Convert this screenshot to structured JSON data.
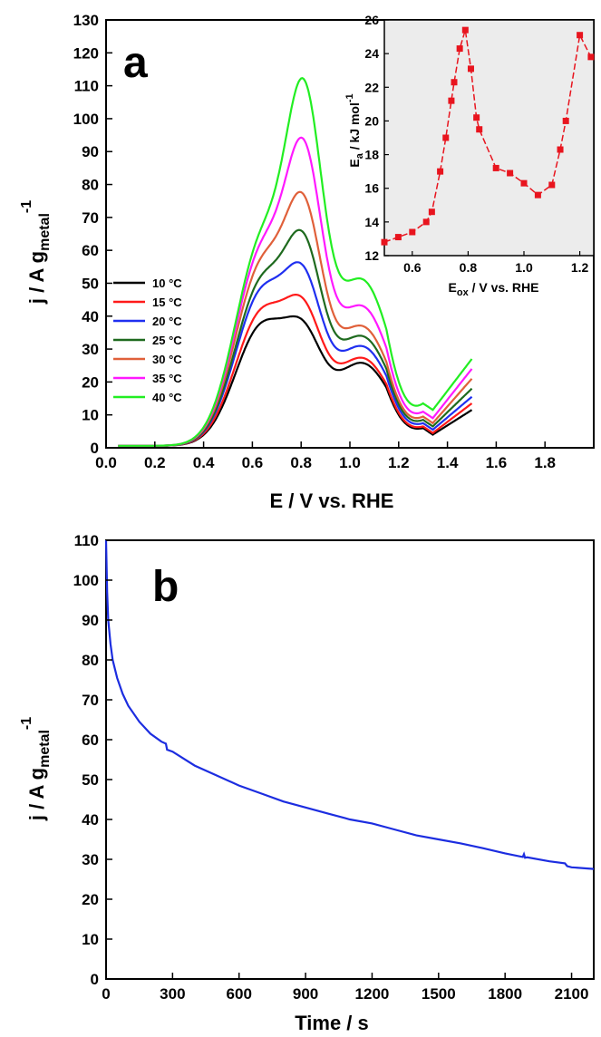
{
  "chart_data": [
    {
      "panel": "a",
      "type": "line",
      "xlabel": {
        "main": "E / V vs. RHE"
      },
      "ylabel": {
        "main": "j / A g",
        "sub": "metal",
        "sup": "-1"
      },
      "xlim": [
        0.0,
        2.0
      ],
      "ylim": [
        0,
        130
      ],
      "xticks": [
        0.0,
        0.2,
        0.4,
        0.6,
        0.8,
        1.0,
        1.2,
        1.4,
        1.6,
        1.8
      ],
      "xticklabels": [
        "0.0",
        "0.2",
        "0.4",
        "0.6",
        "0.8",
        "1.0",
        "1.2",
        "1.4",
        "1.6",
        "1.8"
      ],
      "yticks": [
        0,
        10,
        20,
        30,
        40,
        50,
        60,
        70,
        80,
        90,
        100,
        110,
        120,
        130
      ],
      "legend_position": "left",
      "series": [
        {
          "name": "10 °C",
          "color": "#000000",
          "peak1": 36,
          "peak2": 43.5,
          "valley": 4.0,
          "end": 11.5,
          "shoulder": 25
        },
        {
          "name": "15 °C",
          "color": "#ff1a1a",
          "peak1": 40,
          "peak2": 51,
          "valley": 4.5,
          "end": 13.5,
          "shoulder": 26.5
        },
        {
          "name": "20 °C",
          "color": "#1f2ff0",
          "peak1": 46,
          "peak2": 62,
          "valley": 5.5,
          "end": 15.5,
          "shoulder": 30
        },
        {
          "name": "25 °C",
          "color": "#1e6a1e",
          "peak1": 49,
          "peak2": 72.5,
          "valley": 6.5,
          "end": 18,
          "shoulder": 33
        },
        {
          "name": "30 °C",
          "color": "#e0603a",
          "peak1": 54,
          "peak2": 85,
          "valley": 7.5,
          "end": 21,
          "shoulder": 36
        },
        {
          "name": "35 °C",
          "color": "#ff19ff",
          "peak1": 58,
          "peak2": 102,
          "valley": 9.0,
          "end": 24,
          "shoulder": 42
        },
        {
          "name": "40 °C",
          "color": "#22ee22",
          "peak1": 61,
          "peak2": 120,
          "valley": 11.5,
          "end": 27,
          "shoulder": 50
        }
      ]
    },
    {
      "panel": "a-inset",
      "type": "line",
      "xlabel": {
        "main": "E",
        "sub": "ox",
        "rest": " / V vs. RHE"
      },
      "ylabel": {
        "main": "E",
        "sub": "a",
        "rest": " / kJ mol",
        "sup": "-1"
      },
      "xlim": [
        0.5,
        1.25
      ],
      "ylim": [
        12,
        26
      ],
      "xticks": [
        0.6,
        0.8,
        1.0,
        1.2
      ],
      "xticklabels": [
        "0.6",
        "0.8",
        "1.0",
        "1.2"
      ],
      "yticks": [
        12,
        14,
        16,
        18,
        20,
        22,
        24,
        26
      ],
      "color": "#e8141e",
      "background": "#ececec",
      "x": [
        0.5,
        0.55,
        0.6,
        0.65,
        0.67,
        0.7,
        0.72,
        0.74,
        0.75,
        0.77,
        0.79,
        0.81,
        0.83,
        0.84,
        0.9,
        0.95,
        1.0,
        1.05,
        1.1,
        1.13,
        1.15,
        1.2,
        1.24
      ],
      "y": [
        12.8,
        13.1,
        13.4,
        14.0,
        14.6,
        17.0,
        19.0,
        21.2,
        22.3,
        24.3,
        25.4,
        23.1,
        20.2,
        19.5,
        17.2,
        16.9,
        16.3,
        15.6,
        16.2,
        18.3,
        20.0,
        25.1,
        23.8
      ]
    },
    {
      "panel": "b",
      "type": "line",
      "xlabel": {
        "main": "Time / s"
      },
      "ylabel": {
        "main": "j / A g",
        "sub": "metal",
        "sup": "-1"
      },
      "xlim": [
        0,
        2200
      ],
      "ylim": [
        0,
        110
      ],
      "xticks": [
        0,
        300,
        600,
        900,
        1200,
        1500,
        1800,
        2100
      ],
      "xticklabels": [
        "0",
        "300",
        "600",
        "900",
        "1200",
        "1500",
        "1800",
        "2100"
      ],
      "yticks": [
        0,
        10,
        20,
        30,
        40,
        50,
        60,
        70,
        80,
        90,
        100,
        110
      ],
      "color": "#1c2de0",
      "x": [
        0,
        5,
        10,
        20,
        30,
        50,
        75,
        100,
        150,
        200,
        250,
        270,
        275,
        300,
        400,
        500,
        600,
        700,
        800,
        900,
        1000,
        1100,
        1200,
        1300,
        1400,
        1500,
        1600,
        1700,
        1800,
        1880,
        1885,
        1890,
        1900,
        2000,
        2070,
        2080,
        2100,
        2200
      ],
      "y": [
        110,
        97,
        90,
        84,
        80,
        75.5,
        71.5,
        68.5,
        64.5,
        61.5,
        59.5,
        59,
        57.5,
        57,
        53.5,
        51,
        48.5,
        46.5,
        44.5,
        43,
        41.5,
        40,
        39,
        37.5,
        36,
        35,
        34,
        32.8,
        31.5,
        30.6,
        31.3,
        30.4,
        30.5,
        29.5,
        29,
        28.3,
        28,
        27.6
      ]
    }
  ],
  "labels": {
    "panel_a": "a",
    "panel_b": "b"
  }
}
